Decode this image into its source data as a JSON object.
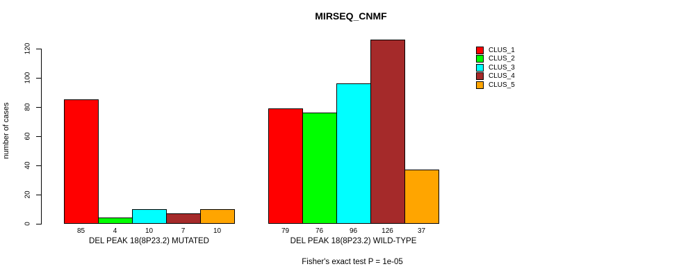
{
  "chart_data": {
    "type": "bar",
    "title": "MIRSEQ_CNMF",
    "ylabel": "number of cases",
    "ylim": [
      0,
      120
    ],
    "yticks": [
      0,
      20,
      40,
      60,
      80,
      100,
      120
    ],
    "grid": false,
    "legend_position": "right-outside",
    "categories": [
      "DEL PEAK 18(8P23.2) MUTATED",
      "DEL PEAK 18(8P23.2) WILD-TYPE"
    ],
    "series": [
      {
        "name": "CLUS_1",
        "color": "#ff0000",
        "values": [
          85,
          79
        ]
      },
      {
        "name": "CLUS_2",
        "color": "#00ff00",
        "values": [
          4,
          76
        ]
      },
      {
        "name": "CLUS_3",
        "color": "#00ffff",
        "values": [
          10,
          96
        ]
      },
      {
        "name": "CLUS_4",
        "color": "#a52a2a",
        "values": [
          7,
          126
        ]
      },
      {
        "name": "CLUS_5",
        "color": "#ffa500",
        "values": [
          10,
          37
        ]
      }
    ],
    "bar_value_labels": [
      [
        85,
        4,
        10,
        7,
        10
      ],
      [
        79,
        76,
        96,
        126,
        37
      ]
    ],
    "footnote": "Fisher's exact test P = 1e-05"
  }
}
